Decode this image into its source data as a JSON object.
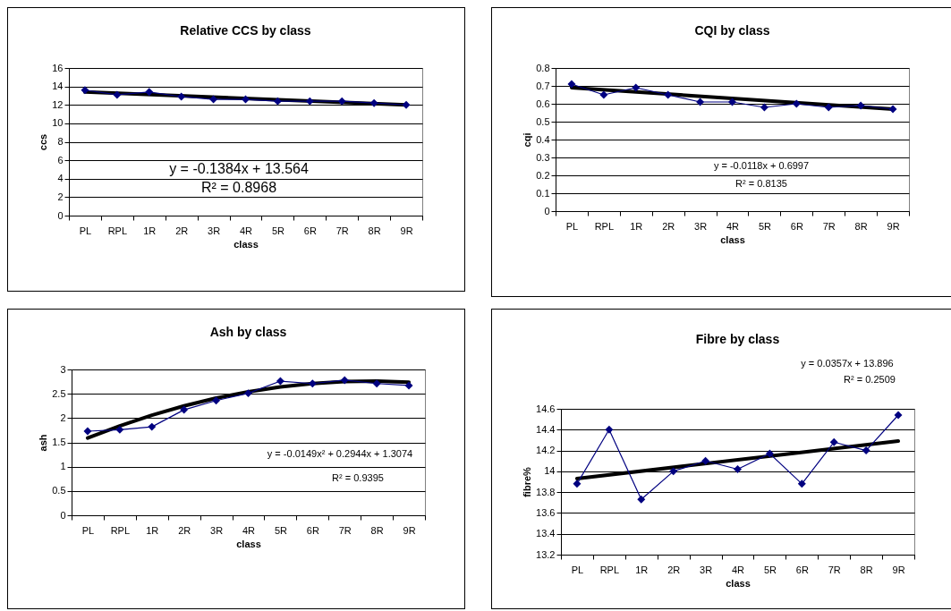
{
  "chart_data": [
    {
      "type": "line",
      "title": "Relative CCS by class",
      "xlabel": "class",
      "ylabel": "ccs",
      "categories": [
        "PL",
        "RPL",
        "1R",
        "2R",
        "3R",
        "4R",
        "5R",
        "6R",
        "7R",
        "8R",
        "9R"
      ],
      "ylim": [
        0,
        16
      ],
      "yticks": [
        0,
        2,
        4,
        6,
        8,
        10,
        12,
        14,
        16
      ],
      "grid": "y",
      "legend": false,
      "marker": "diamond",
      "series": [
        {
          "color": "#000080",
          "values": [
            13.6,
            13.1,
            13.4,
            12.9,
            12.6,
            12.6,
            12.4,
            12.4,
            12.4,
            12.2,
            12.0
          ]
        },
        {
          "type": "line",
          "marker": "none",
          "color": "#000000",
          "x": [
            "PL",
            "9R"
          ],
          "values": [
            13.4,
            12.0
          ]
        }
      ],
      "annotations": [
        "y = -0.1384x + 13.564",
        "R² = 0.8968"
      ]
    },
    {
      "type": "line",
      "title": "CQI by class",
      "xlabel": "class",
      "ylabel": "cqi",
      "categories": [
        "PL",
        "RPL",
        "1R",
        "2R",
        "3R",
        "4R",
        "5R",
        "6R",
        "7R",
        "8R",
        "9R"
      ],
      "ylim": [
        0,
        0.8
      ],
      "yticks": [
        0,
        0.1,
        0.2,
        0.3,
        0.4,
        0.5,
        0.6,
        0.7,
        0.8
      ],
      "grid": "y",
      "legend": false,
      "marker": "diamond",
      "series": [
        {
          "color": "#000080",
          "values": [
            0.71,
            0.65,
            0.69,
            0.65,
            0.61,
            0.61,
            0.58,
            0.6,
            0.58,
            0.59,
            0.57
          ]
        },
        {
          "type": "line",
          "marker": "none",
          "color": "#000000",
          "x": [
            "PL",
            "9R"
          ],
          "values": [
            0.69,
            0.57
          ]
        }
      ],
      "annotations": [
        "y = -0.0118x + 0.6997",
        "R² = 0.8135"
      ]
    },
    {
      "type": "line",
      "title": "Ash by class",
      "xlabel": "class",
      "ylabel": "ash",
      "categories": [
        "PL",
        "RPL",
        "1R",
        "2R",
        "3R",
        "4R",
        "5R",
        "6R",
        "7R",
        "8R",
        "9R"
      ],
      "ylim": [
        0,
        3
      ],
      "yticks": [
        0,
        0.5,
        1,
        1.5,
        2,
        2.5,
        3
      ],
      "grid": "y",
      "legend": false,
      "marker": "diamond",
      "series": [
        {
          "color": "#000080",
          "values": [
            1.73,
            1.76,
            1.82,
            2.17,
            2.36,
            2.51,
            2.76,
            2.71,
            2.78,
            2.71,
            2.67
          ]
        },
        {
          "type": "line",
          "marker": "none",
          "color": "#000000",
          "x": [
            "PL",
            "RPL",
            "1R",
            "2R",
            "3R",
            "4R",
            "5R",
            "6R",
            "7R",
            "8R",
            "9R"
          ],
          "values": [
            1.59,
            1.84,
            2.06,
            2.25,
            2.41,
            2.54,
            2.64,
            2.71,
            2.75,
            2.76,
            2.74
          ]
        }
      ],
      "annotations": [
        "y = -0.0149x² + 0.2944x + 1.3074",
        "R² = 0.9395"
      ]
    },
    {
      "type": "line",
      "title": "Fibre by class",
      "xlabel": "class",
      "ylabel": "fibre%",
      "categories": [
        "PL",
        "RPL",
        "1R",
        "2R",
        "3R",
        "4R",
        "5R",
        "6R",
        "7R",
        "8R",
        "9R"
      ],
      "ylim": [
        13.2,
        14.6
      ],
      "yticks": [
        13.2,
        13.4,
        13.6,
        13.8,
        14,
        14.2,
        14.4,
        14.6
      ],
      "grid": "y",
      "legend": false,
      "marker": "diamond",
      "series": [
        {
          "color": "#000080",
          "values": [
            13.88,
            14.4,
            13.73,
            14.0,
            14.1,
            14.02,
            14.17,
            13.88,
            14.28,
            14.2,
            14.54
          ]
        },
        {
          "type": "line",
          "marker": "none",
          "color": "#000000",
          "x": [
            "PL",
            "9R"
          ],
          "values": [
            13.93,
            14.29
          ]
        }
      ],
      "annotations": [
        "y = 0.0357x + 13.896",
        "R² = 0.2509"
      ]
    }
  ]
}
